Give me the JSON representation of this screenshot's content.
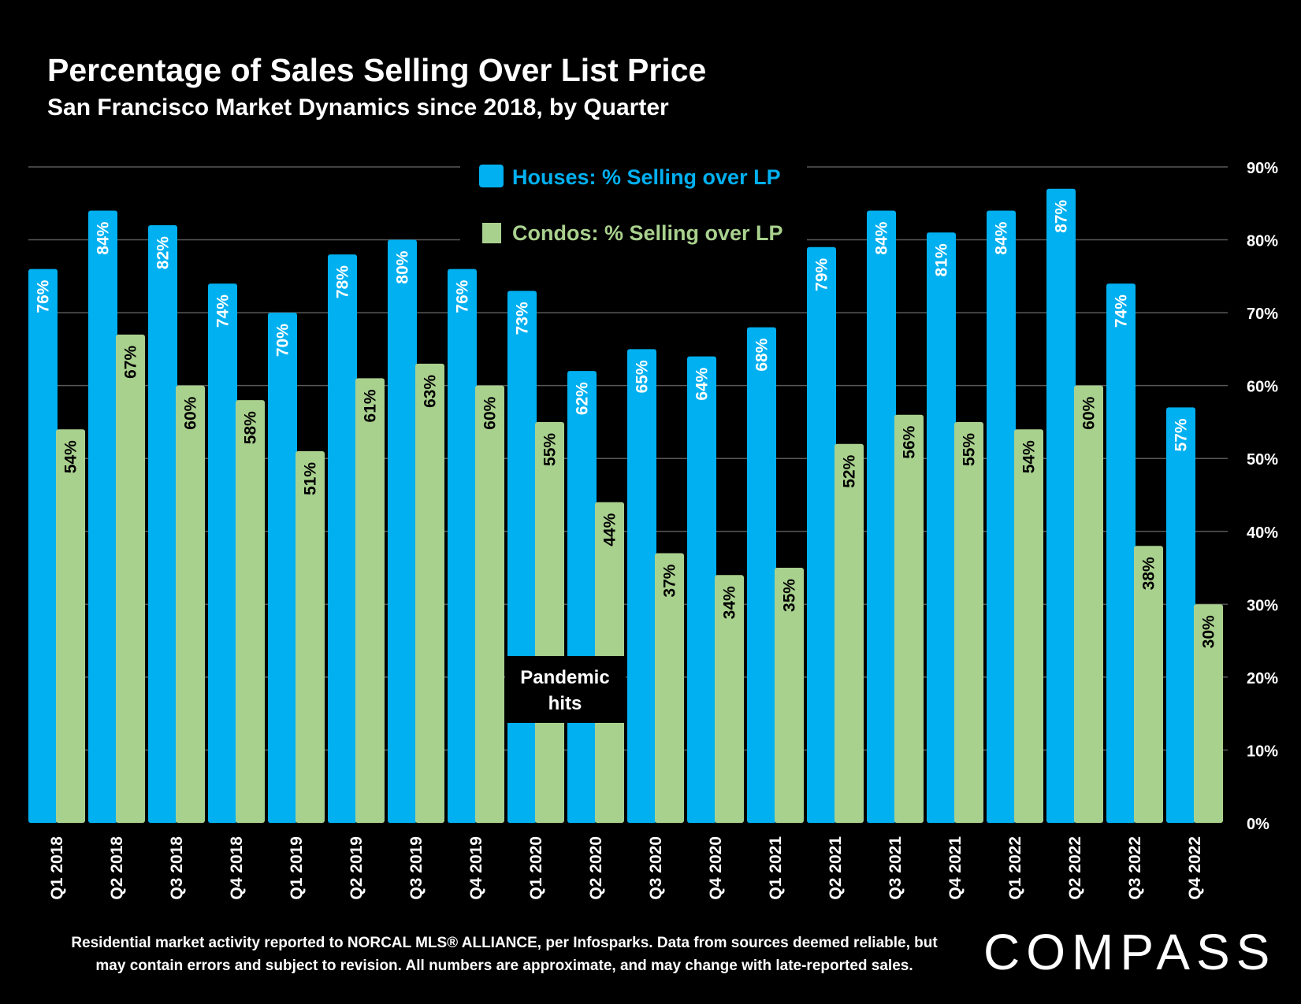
{
  "chart_data": {
    "type": "bar",
    "title": "Percentage of Sales Selling Over List Price",
    "subtitle": "San Francisco Market Dynamics since 2018, by Quarter",
    "categories": [
      "Q1 2018",
      "Q2 2018",
      "Q3 2018",
      "Q4 2018",
      "Q1 2019",
      "Q2 2019",
      "Q3 2019",
      "Q4 2019",
      "Q1 2020",
      "Q2 2020",
      "Q3 2020",
      "Q4 2020",
      "Q1 2021",
      "Q2 2021",
      "Q3 2021",
      "Q4 2021",
      "Q1 2022",
      "Q2 2022",
      "Q3 2022",
      "Q4 2022"
    ],
    "series": [
      {
        "name": "Houses: % Selling over LP",
        "color": "#00b0f0",
        "label_color": "#ffffff",
        "values": [
          76,
          84,
          82,
          74,
          70,
          78,
          80,
          76,
          73,
          62,
          65,
          64,
          68,
          79,
          84,
          81,
          84,
          87,
          74,
          57
        ],
        "labels": [
          "76%",
          "84%",
          "82%",
          "74%",
          "70%",
          "78%",
          "80%",
          "76%",
          "73%",
          "62%",
          "65%",
          "64%",
          "68%",
          "79%",
          "84%",
          "81%",
          "84%",
          "87%",
          "74%",
          "57%"
        ]
      },
      {
        "name": "Condos: % Selling over LP",
        "color": "#a9d18e",
        "label_color": "#000000",
        "values": [
          54,
          67,
          60,
          58,
          51,
          61,
          63,
          60,
          55,
          44,
          37,
          34,
          35,
          52,
          56,
          55,
          54,
          60,
          38,
          30
        ],
        "labels": [
          "54%",
          "67%",
          "60%",
          "58%",
          "51%",
          "61%",
          "63%",
          "60%",
          "55%",
          "44%",
          "37%",
          "34%",
          "35%",
          "52%",
          "56%",
          "55%",
          "54%",
          "60%",
          "38%",
          "30%"
        ]
      }
    ],
    "y_axis": {
      "min": 0,
      "max": 90,
      "step": 10,
      "position": "right",
      "tick_labels": [
        "0%",
        "10%",
        "20%",
        "30%",
        "40%",
        "50%",
        "60%",
        "70%",
        "80%",
        "90%"
      ]
    },
    "grid": true,
    "legend_position": "top-center",
    "annotation": {
      "text_lines": [
        "Pandemic",
        "hits"
      ],
      "category": "Q2 2020"
    }
  },
  "footnote": {
    "line1": "Residential market activity reported to NORCAL MLS® ALLIANCE, per Infosparks. Data from sources deemed reliable, but",
    "line2": "may contain errors and subject to revision. All numbers are approximate, and may change with late-reported sales."
  },
  "logo": {
    "text": "COMPASS"
  },
  "colors": {
    "background": "#000000",
    "gridline": "#595959",
    "text": "#ffffff"
  }
}
